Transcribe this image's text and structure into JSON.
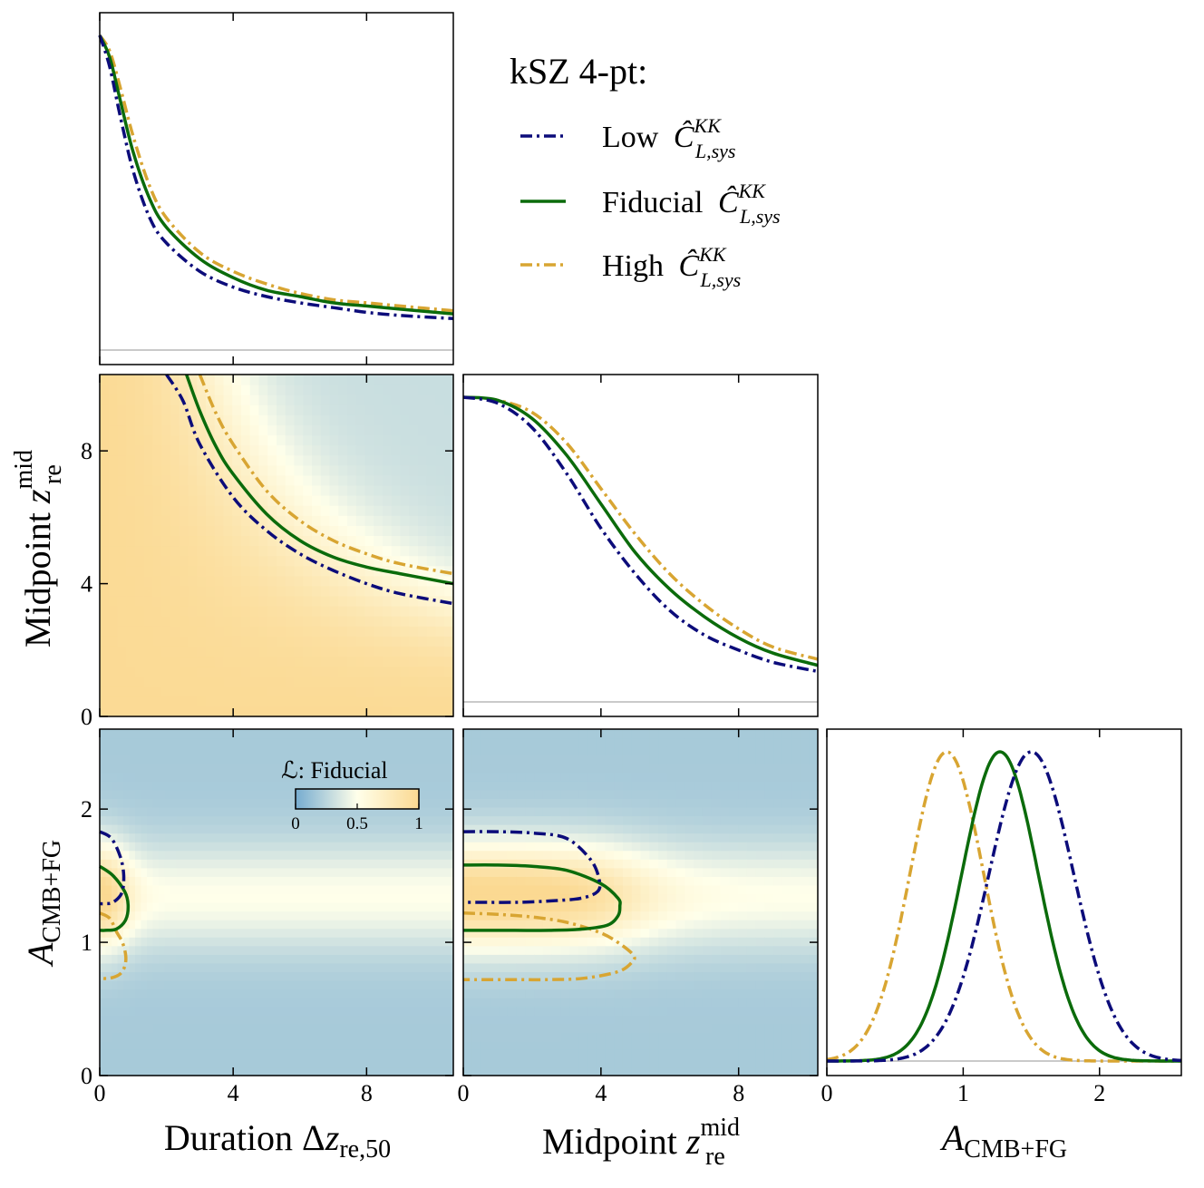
{
  "chart_data": {
    "type": "corner",
    "colors": {
      "low": "#0c0c7a",
      "fiducial": "#0b6b0b",
      "high": "#d8a532",
      "cmap_low": "#76acd0",
      "cmap_mid": "#ffffea",
      "cmap_high": "#fbd992",
      "zero_line": "#aaaaaa"
    },
    "legend": {
      "title": "kSZ 4-pt:",
      "entries": [
        {
          "key": "low",
          "label": "Low",
          "symbol": "Ĉ",
          "sup": "KK",
          "sub": "L,sys"
        },
        {
          "key": "fiducial",
          "label": "Fiducial",
          "symbol": "Ĉ",
          "sup": "KK",
          "sub": "L,sys"
        },
        {
          "key": "high",
          "label": "High",
          "symbol": "Ĉ",
          "sup": "KK",
          "sub": "L,sys"
        }
      ]
    },
    "colorbar": {
      "label": "ℒ: Fiducial",
      "ticks": [
        0,
        0.5,
        1
      ],
      "tick_labels": [
        "0",
        "0.5",
        "1"
      ]
    },
    "parameters": [
      {
        "key": "dz",
        "range": [
          0,
          10.6
        ],
        "ticks": [
          0,
          4,
          8
        ],
        "tick_labels": [
          "0",
          "4",
          "8"
        ],
        "label_main": "Duration Δ",
        "label_var": "z",
        "label_sub": "re,50"
      },
      {
        "key": "zmid",
        "range": [
          0,
          10.3
        ],
        "ticks": [
          0,
          4,
          8
        ],
        "tick_labels": [
          "0",
          "4",
          "8"
        ],
        "label_main": "Midpoint ",
        "label_var": "z",
        "label_sub": "re",
        "label_sup": "mid"
      },
      {
        "key": "A",
        "range": [
          0,
          2.6
        ],
        "ticks": [
          0,
          1,
          2
        ],
        "tick_labels": [
          "0",
          "1",
          "2"
        ],
        "label_main": "",
        "label_var": "A",
        "label_sub": "CMB+FG"
      }
    ],
    "marginals": {
      "dz": {
        "low": {
          "x": [
            0,
            0.3,
            0.6,
            1,
            1.5,
            2,
            3,
            4,
            5,
            6,
            7,
            8,
            9,
            10.6
          ],
          "y": [
            1.0,
            0.9,
            0.75,
            0.57,
            0.42,
            0.34,
            0.25,
            0.2,
            0.17,
            0.15,
            0.135,
            0.12,
            0.11,
            0.1
          ]
        },
        "fiducial": {
          "x": [
            0,
            0.3,
            0.6,
            1,
            1.5,
            2,
            3,
            4,
            5,
            6,
            7,
            8,
            9,
            10.6
          ],
          "y": [
            1.0,
            0.93,
            0.8,
            0.63,
            0.48,
            0.39,
            0.29,
            0.23,
            0.19,
            0.17,
            0.15,
            0.14,
            0.13,
            0.115
          ]
        },
        "high": {
          "x": [
            0,
            0.3,
            0.6,
            1,
            1.5,
            2,
            3,
            4,
            5,
            6,
            7,
            8,
            9,
            10.6
          ],
          "y": [
            1.0,
            0.95,
            0.84,
            0.68,
            0.52,
            0.42,
            0.31,
            0.25,
            0.21,
            0.18,
            0.16,
            0.15,
            0.14,
            0.125
          ]
        }
      },
      "zmid": {
        "low": {
          "x": [
            0,
            1,
            2,
            3,
            4,
            5,
            6,
            7,
            8,
            9,
            10.3
          ],
          "y": [
            1.0,
            0.98,
            0.9,
            0.75,
            0.57,
            0.42,
            0.3,
            0.22,
            0.17,
            0.13,
            0.1
          ]
        },
        "fiducial": {
          "x": [
            0,
            1,
            2,
            3,
            4,
            5,
            6,
            7,
            8,
            9,
            10.3
          ],
          "y": [
            1.0,
            0.99,
            0.93,
            0.81,
            0.65,
            0.49,
            0.37,
            0.28,
            0.21,
            0.16,
            0.12
          ]
        },
        "high": {
          "x": [
            0,
            1,
            2,
            3,
            4,
            5,
            6,
            7,
            8,
            9,
            10.3
          ],
          "y": [
            1.0,
            0.99,
            0.95,
            0.85,
            0.7,
            0.55,
            0.42,
            0.32,
            0.24,
            0.18,
            0.14
          ]
        }
      },
      "A": {
        "low": {
          "mean": 1.5,
          "sigma": 0.31,
          "floor": 0.0
        },
        "fiducial": {
          "mean": 1.27,
          "sigma": 0.28,
          "floor": 0.0
        },
        "high": {
          "mean": 0.88,
          "sigma": 0.27,
          "floor": 0.0
        }
      }
    },
    "contours": {
      "dz_zmid": {
        "low": {
          "x": [
            2.0,
            2.5,
            3,
            4,
            5,
            6,
            7,
            8,
            9,
            10.6
          ],
          "y": [
            10.3,
            9.5,
            8.2,
            6.6,
            5.6,
            4.9,
            4.4,
            4.0,
            3.7,
            3.4
          ]
        },
        "fiducial": {
          "x": [
            2.6,
            3,
            3.5,
            4,
            5,
            6,
            7,
            8,
            9,
            10.6
          ],
          "y": [
            10.3,
            9.2,
            8.1,
            7.3,
            6.1,
            5.3,
            4.8,
            4.5,
            4.3,
            4.0
          ]
        },
        "high": {
          "x": [
            3.0,
            3.5,
            4,
            5,
            6,
            7,
            8,
            9,
            10.6
          ],
          "y": [
            10.3,
            9.1,
            8.2,
            6.8,
            5.9,
            5.3,
            4.9,
            4.6,
            4.3
          ]
        }
      },
      "dz_A": {
        "low": {
          "x": [
            0,
            0.35,
            0.62,
            0.72,
            0.66,
            0.4,
            0.15,
            0
          ],
          "y": [
            1.83,
            1.78,
            1.64,
            1.5,
            1.37,
            1.3,
            1.29,
            1.29
          ]
        },
        "fiducial": {
          "x": [
            0,
            0.4,
            0.75,
            0.85,
            0.78,
            0.5,
            0.15,
            0
          ],
          "y": [
            1.57,
            1.5,
            1.38,
            1.28,
            1.17,
            1.1,
            1.09,
            1.09
          ]
        },
        "high": {
          "x": [
            0,
            0.3,
            0.5,
            0.68,
            0.78,
            0.75,
            0.6,
            0.3,
            0
          ],
          "y": [
            1.22,
            1.18,
            1.08,
            1.0,
            0.9,
            0.82,
            0.76,
            0.73,
            0.73
          ]
        }
      },
      "zmid_A": {
        "low": {
          "x": [
            0,
            1,
            2,
            3,
            3.7,
            3.95,
            3.9,
            3.4,
            2.5,
            1.5,
            0.5,
            0
          ],
          "y": [
            1.83,
            1.83,
            1.82,
            1.78,
            1.62,
            1.47,
            1.38,
            1.33,
            1.31,
            1.3,
            1.3,
            1.3
          ]
        },
        "fiducial": {
          "x": [
            0,
            1,
            2,
            3,
            4,
            4.5,
            4.55,
            4.5,
            4.2,
            3.5,
            2.5,
            1.5,
            0.5,
            0
          ],
          "y": [
            1.58,
            1.58,
            1.57,
            1.54,
            1.44,
            1.33,
            1.27,
            1.2,
            1.13,
            1.1,
            1.09,
            1.09,
            1.09,
            1.09
          ]
        },
        "high": {
          "x": [
            0,
            1,
            2,
            3,
            4,
            4.6,
            4.95,
            4.9,
            4.5,
            3.5,
            2.5,
            1.5,
            0.5,
            0
          ],
          "y": [
            1.22,
            1.21,
            1.19,
            1.15,
            1.07,
            0.98,
            0.9,
            0.85,
            0.78,
            0.73,
            0.72,
            0.72,
            0.72,
            0.72
          ]
        }
      }
    },
    "heatmaps": {
      "dz_zmid": {
        "description": "likelihood high (1) at small duration / low midpoint, falling to ~0.3 at large duration and midpoint"
      },
      "dz_A": {
        "peak_A": 1.35,
        "width_A": 0.28
      },
      "zmid_A": {
        "peak_A": 1.35,
        "width_A": 0.28,
        "peak_zmid_extent": 4.8
      }
    }
  }
}
